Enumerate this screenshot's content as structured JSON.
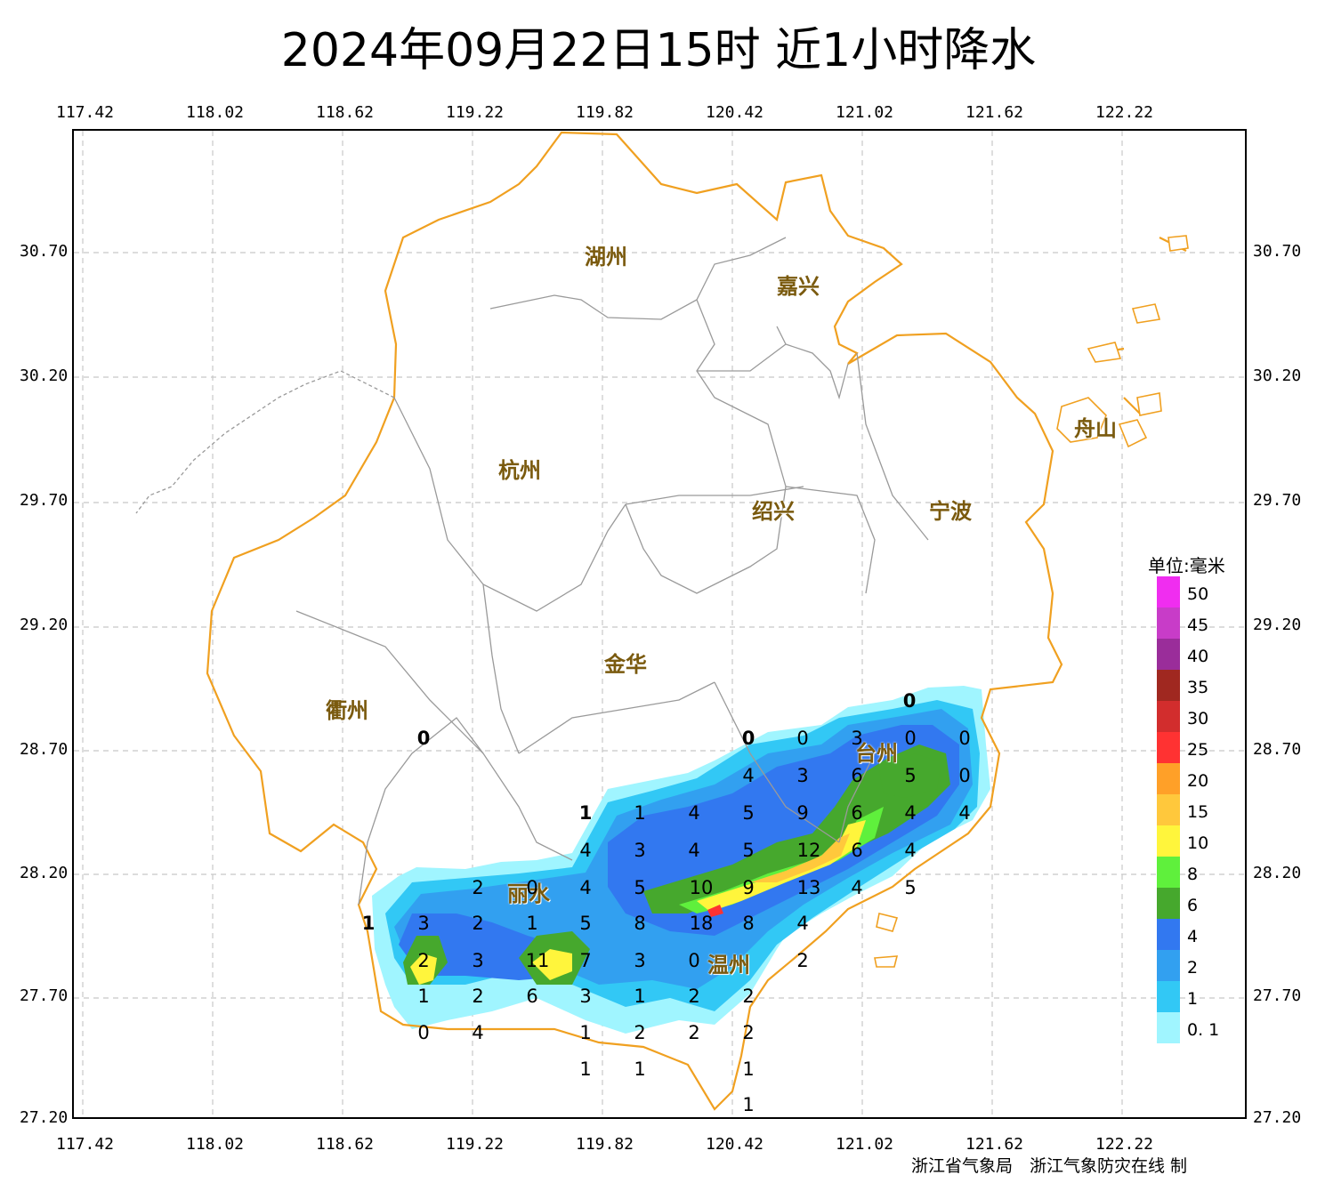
{
  "title": "2024年09月22日15时  近1小时降水",
  "axes": {
    "lon_labels": [
      "117.42",
      "118.02",
      "118.62",
      "119.22",
      "119.82",
      "120.42",
      "121.02",
      "121.62",
      "122.22"
    ],
    "lat_labels": [
      "30.70",
      "30.20",
      "29.70",
      "29.20",
      "28.70",
      "28.20",
      "27.70",
      "27.20"
    ]
  },
  "cities": [
    "湖州",
    "嘉兴",
    "杭州",
    "绍兴",
    "宁波",
    "舟山",
    "衢州",
    "金华",
    "丽水",
    "台州",
    "温州"
  ],
  "stations": [
    [
      "0",
      ""
    ],
    [
      "0",
      ""
    ],
    [
      "0",
      ""
    ],
    [
      "0",
      ""
    ],
    [
      "3",
      ""
    ],
    [
      "0",
      ""
    ],
    [
      "0",
      ""
    ],
    [
      "4",
      ""
    ],
    [
      "3",
      ""
    ],
    [
      "6",
      ""
    ],
    [
      "5",
      ""
    ],
    [
      "0",
      ""
    ],
    [
      "1",
      "b"
    ],
    [
      "1",
      ""
    ],
    [
      "4",
      ""
    ],
    [
      "5",
      ""
    ],
    [
      "9",
      ""
    ],
    [
      "6",
      ""
    ],
    [
      "4",
      ""
    ],
    [
      "4",
      ""
    ],
    [
      "4",
      ""
    ],
    [
      "3",
      ""
    ],
    [
      "4",
      ""
    ],
    [
      "5",
      ""
    ],
    [
      "12",
      ""
    ],
    [
      "6",
      ""
    ],
    [
      "4",
      ""
    ],
    [
      "2",
      ""
    ],
    [
      "0",
      ""
    ],
    [
      "4",
      ""
    ],
    [
      "5",
      ""
    ],
    [
      "10",
      ""
    ],
    [
      "9",
      ""
    ],
    [
      "13",
      ""
    ],
    [
      "4",
      ""
    ],
    [
      "5",
      ""
    ],
    [
      "1",
      "b"
    ],
    [
      "3",
      ""
    ],
    [
      "2",
      ""
    ],
    [
      "1",
      ""
    ],
    [
      "5",
      ""
    ],
    [
      "8",
      ""
    ],
    [
      "18",
      ""
    ],
    [
      "8",
      ""
    ],
    [
      "4",
      ""
    ],
    [
      "2",
      ""
    ],
    [
      "3",
      ""
    ],
    [
      "11",
      ""
    ],
    [
      "7",
      ""
    ],
    [
      "3",
      ""
    ],
    [
      "0",
      ""
    ],
    [
      "2",
      ""
    ],
    [
      "1",
      ""
    ],
    [
      "2",
      ""
    ],
    [
      "6",
      ""
    ],
    [
      "3",
      ""
    ],
    [
      "1",
      ""
    ],
    [
      "2",
      ""
    ],
    [
      "2",
      ""
    ],
    [
      "0",
      ""
    ],
    [
      "4",
      ""
    ],
    [
      "1",
      ""
    ],
    [
      "2",
      ""
    ],
    [
      "2",
      ""
    ],
    [
      "2",
      ""
    ],
    [
      "1",
      ""
    ],
    [
      "1",
      ""
    ],
    [
      "1",
      ""
    ],
    [
      "1",
      ""
    ]
  ],
  "legend": {
    "unit": "单位:毫米",
    "items": [
      {
        "label": "50",
        "color": "#f02df0"
      },
      {
        "label": "45",
        "color": "#c83cc8"
      },
      {
        "label": "40",
        "color": "#9a2d9a"
      },
      {
        "label": "35",
        "color": "#a02820"
      },
      {
        "label": "30",
        "color": "#d22d2d"
      },
      {
        "label": "25",
        "color": "#ff3232"
      },
      {
        "label": "20",
        "color": "#ffa028"
      },
      {
        "label": "15",
        "color": "#ffc83c"
      },
      {
        "label": "10",
        "color": "#fff53c"
      },
      {
        "label": "8",
        "color": "#5ff03c"
      },
      {
        "label": "6",
        "color": "#46a82d"
      },
      {
        "label": "4",
        "color": "#3278f0"
      },
      {
        "label": "2",
        "color": "#32a0f0"
      },
      {
        "label": "1",
        "color": "#32c8f5"
      },
      {
        "label": "0. 1",
        "color": "#a0f5ff"
      }
    ]
  },
  "credit": "浙江省气象局　浙江气象防灾在线 制"
}
